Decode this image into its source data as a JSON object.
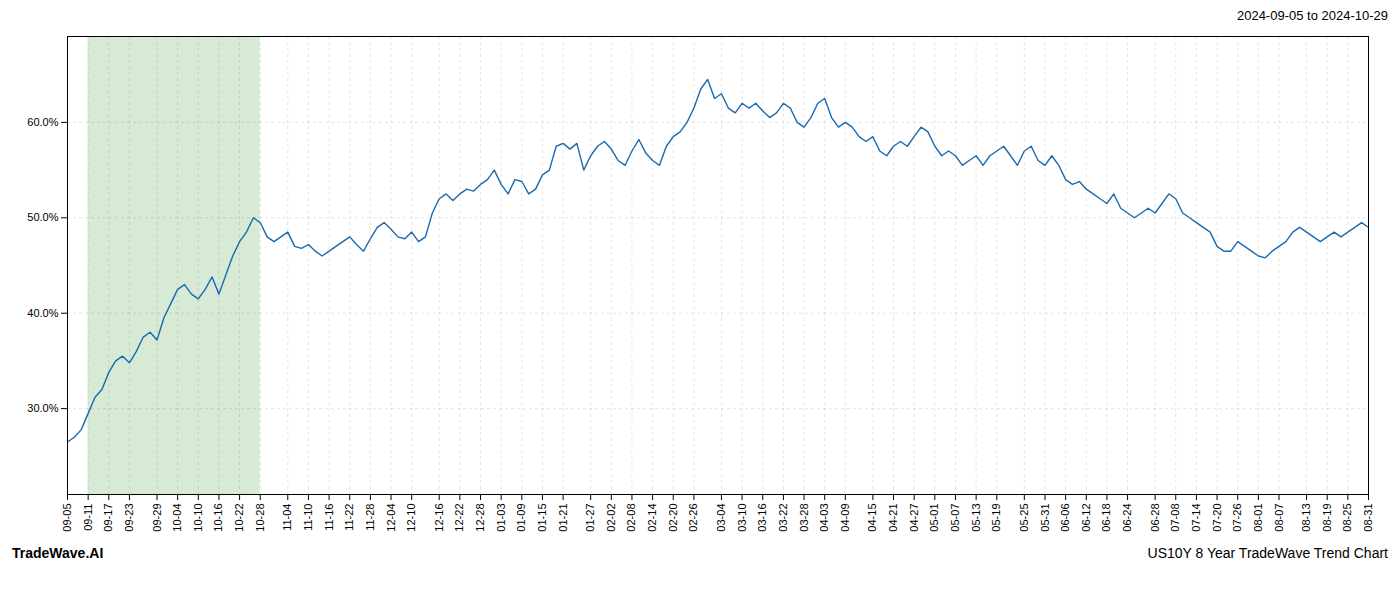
{
  "chart_data": {
    "type": "line",
    "title": "2024-09-05 to 2024-10-29",
    "annotations": [
      "TradeWave.AI",
      "US10Y 8 Year TradeWave Trend Chart"
    ],
    "color": "#1a6ab0",
    "grid": true,
    "ylim": [
      21,
      69
    ],
    "yticks": [
      {
        "value": 30.0,
        "label": "30.0%"
      },
      {
        "value": 40.0,
        "label": "40.0%"
      },
      {
        "value": 50.0,
        "label": "50.0%"
      },
      {
        "value": 60.0,
        "label": "60.0%"
      }
    ],
    "highlight": {
      "x": [
        "09-11",
        "10-28"
      ],
      "color": "#d6ead6"
    },
    "categories": [
      "09-05",
      null,
      null,
      "09-11",
      null,
      null,
      "09-17",
      null,
      null,
      "09-23",
      null,
      null,
      null,
      "09-29",
      null,
      null,
      "10-04",
      null,
      null,
      "10-10",
      null,
      null,
      "10-16",
      null,
      null,
      "10-22",
      null,
      null,
      "10-28",
      null,
      null,
      null,
      "11-04",
      null,
      null,
      "11-10",
      null,
      null,
      "11-16",
      null,
      null,
      "11-22",
      null,
      null,
      "11-28",
      null,
      null,
      "12-04",
      null,
      null,
      "12-10",
      null,
      null,
      null,
      "12-16",
      null,
      null,
      "12-22",
      null,
      null,
      "12-28",
      null,
      null,
      "01-03",
      null,
      null,
      "01-09",
      null,
      null,
      "01-15",
      null,
      null,
      "01-21",
      null,
      null,
      null,
      "01-27",
      null,
      null,
      "02-02",
      null,
      null,
      "02-08",
      null,
      null,
      "02-14",
      null,
      null,
      "02-20",
      null,
      null,
      "02-26",
      null,
      null,
      null,
      "03-04",
      null,
      null,
      "03-10",
      null,
      null,
      "03-16",
      null,
      null,
      "03-22",
      null,
      null,
      "03-28",
      null,
      null,
      "04-03",
      null,
      null,
      "04-09",
      null,
      null,
      null,
      "04-15",
      null,
      null,
      "04-21",
      null,
      null,
      "04-27",
      null,
      null,
      "05-01",
      null,
      null,
      "05-07",
      null,
      null,
      "05-13",
      null,
      null,
      "05-19",
      null,
      null,
      null,
      "05-25",
      null,
      null,
      "05-31",
      null,
      null,
      "06-06",
      null,
      null,
      "06-12",
      null,
      null,
      "06-18",
      null,
      null,
      "06-24",
      null,
      null,
      null,
      "06-28",
      null,
      null,
      "07-08",
      null,
      null,
      "07-14",
      null,
      null,
      "07-20",
      null,
      null,
      "07-26",
      null,
      null,
      "08-01",
      null,
      null,
      "08-07",
      null,
      null,
      null,
      "08-13",
      null,
      null,
      "08-19",
      null,
      null,
      "08-25",
      null,
      null,
      "08-31"
    ],
    "values": [
      26.5,
      27.0,
      27.8,
      29.5,
      31.2,
      32.0,
      33.8,
      35.0,
      35.5,
      34.8,
      36.0,
      37.5,
      38.0,
      37.2,
      39.5,
      41.0,
      42.5,
      43.0,
      42.0,
      41.5,
      42.5,
      43.8,
      42.0,
      44.0,
      46.0,
      47.5,
      48.5,
      50.0,
      49.5,
      48.0,
      47.5,
      48.0,
      48.5,
      47.0,
      46.8,
      47.2,
      46.5,
      46.0,
      46.5,
      47.0,
      47.5,
      48.0,
      47.2,
      46.5,
      47.8,
      49.0,
      49.5,
      48.8,
      48.0,
      47.8,
      48.5,
      47.5,
      48.0,
      50.5,
      52.0,
      52.5,
      51.8,
      52.5,
      53.0,
      52.8,
      53.5,
      54.0,
      55.0,
      53.5,
      52.5,
      54.0,
      53.8,
      52.5,
      53.0,
      54.5,
      55.0,
      57.5,
      57.8,
      57.2,
      57.8,
      55.0,
      56.5,
      57.5,
      58.0,
      57.2,
      56.0,
      55.5,
      57.0,
      58.2,
      56.8,
      56.0,
      55.5,
      57.5,
      58.5,
      59.0,
      60.0,
      61.5,
      63.5,
      64.5,
      62.5,
      63.0,
      61.5,
      61.0,
      62.0,
      61.5,
      62.0,
      61.2,
      60.5,
      61.0,
      62.0,
      61.5,
      60.0,
      59.5,
      60.5,
      62.0,
      62.5,
      60.5,
      59.5,
      60.0,
      59.5,
      58.5,
      58.0,
      58.5,
      57.0,
      56.5,
      57.5,
      58.0,
      57.5,
      58.5,
      59.5,
      59.0,
      57.5,
      56.5,
      57.0,
      56.5,
      55.5,
      56.0,
      56.5,
      55.5,
      56.5,
      57.0,
      57.5,
      56.5,
      55.5,
      57.0,
      57.5,
      56.0,
      55.5,
      56.5,
      55.5,
      54.0,
      53.5,
      53.8,
      53.0,
      52.5,
      52.0,
      51.5,
      52.5,
      51.0,
      50.5,
      50.0,
      50.5,
      51.0,
      50.5,
      51.5,
      52.5,
      52.0,
      50.5,
      50.0,
      49.5,
      49.0,
      48.5,
      47.0,
      46.5,
      46.5,
      47.5,
      47.0,
      46.5,
      46.0,
      45.8,
      46.5,
      47.0,
      47.5,
      48.5,
      49.0,
      48.5,
      48.0,
      47.5,
      48.0,
      48.5,
      48.0,
      48.5,
      49.0,
      49.5,
      49.0
    ]
  }
}
